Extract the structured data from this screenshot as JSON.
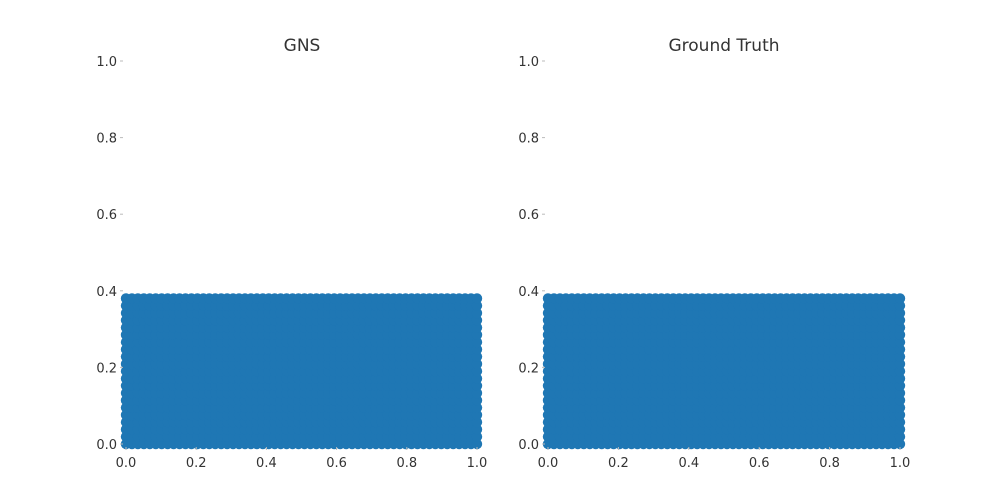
{
  "chart_data": [
    {
      "type": "scatter",
      "title": "GNS",
      "xlabel": "",
      "ylabel": "",
      "xlim": [
        0.0,
        1.0
      ],
      "ylim": [
        0.0,
        1.0
      ],
      "xticks": [
        "0.0",
        "0.2",
        "0.4",
        "0.6",
        "0.8",
        "1.0"
      ],
      "yticks": [
        "0.0",
        "0.2",
        "0.4",
        "0.6",
        "0.8",
        "1.0"
      ],
      "grid": false,
      "series": [
        {
          "color": "#1f77b4",
          "region": {
            "x": [
              0.0,
              1.0
            ],
            "y": [
              0.0,
              0.38
            ]
          },
          "grid_points": {
            "x_count": 60,
            "y_count": 21
          }
        }
      ]
    },
    {
      "type": "scatter",
      "title": "Ground Truth",
      "xlabel": "",
      "ylabel": "",
      "xlim": [
        0.0,
        1.0
      ],
      "ylim": [
        0.0,
        1.0
      ],
      "xticks": [
        "0.0",
        "0.2",
        "0.4",
        "0.6",
        "0.8",
        "1.0"
      ],
      "yticks": [
        "0.0",
        "0.2",
        "0.4",
        "0.6",
        "0.8",
        "1.0"
      ],
      "grid": false,
      "series": [
        {
          "color": "#1f77b4",
          "region": {
            "x": [
              0.0,
              1.0
            ],
            "y": [
              0.0,
              0.38
            ]
          },
          "grid_points": {
            "x_count": 60,
            "y_count": 21
          }
        }
      ]
    }
  ]
}
